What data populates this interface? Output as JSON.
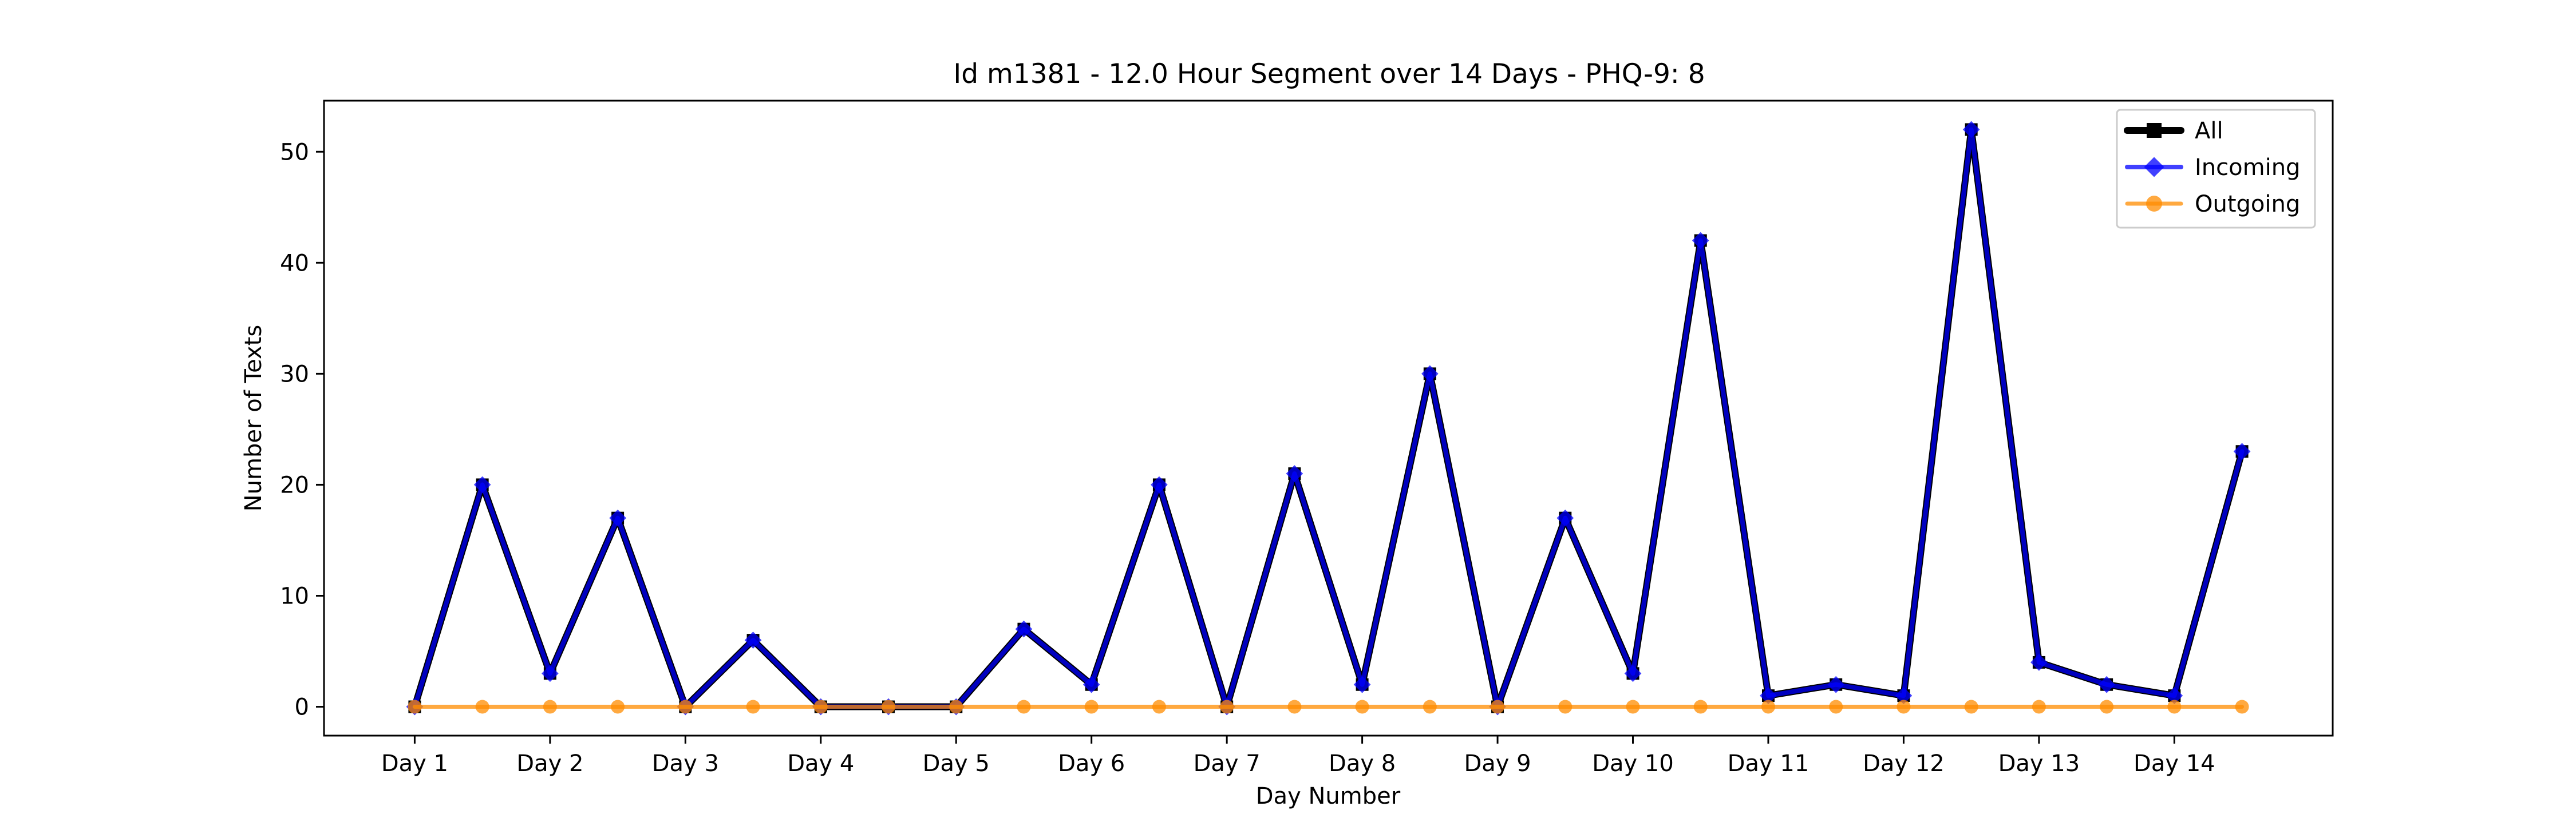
{
  "chart_data": {
    "type": "line",
    "title": "Id m1381 - 12.0 Hour Segment over 14 Days - PHQ-9: 8",
    "xlabel": "Day Number",
    "ylabel": "Number of Texts",
    "x": [
      1,
      1.5,
      2,
      2.5,
      3,
      3.5,
      4,
      4.5,
      5,
      5.5,
      6,
      6.5,
      7,
      7.5,
      8,
      8.5,
      9,
      9.5,
      10,
      10.5,
      11,
      11.5,
      12,
      12.5,
      13,
      13.5,
      14,
      14.5
    ],
    "xticks": [
      1,
      2,
      3,
      4,
      5,
      6,
      7,
      8,
      9,
      10,
      11,
      12,
      13,
      14
    ],
    "xtick_labels": [
      "Day 1",
      "Day 2",
      "Day 3",
      "Day 4",
      "Day 5",
      "Day 6",
      "Day 7",
      "Day 8",
      "Day 9",
      "Day 10",
      "Day 11",
      "Day 12",
      "Day 13",
      "Day 14"
    ],
    "yticks": [
      0,
      10,
      20,
      30,
      40,
      50
    ],
    "xlim": [
      0.33,
      15.17
    ],
    "ylim": [
      -2.6,
      54.6
    ],
    "grid": false,
    "legend_position": "top-right",
    "series": [
      {
        "name": "All",
        "color": "#000000",
        "marker": "square",
        "values": [
          0,
          20,
          3,
          17,
          0,
          6,
          0,
          0,
          0,
          7,
          2,
          20,
          0,
          21,
          2,
          30,
          0,
          17,
          3,
          42,
          1,
          2,
          1,
          52,
          4,
          2,
          1,
          23
        ]
      },
      {
        "name": "Incoming",
        "color": "#0000ff",
        "marker": "diamond",
        "values": [
          0,
          20,
          3,
          17,
          0,
          6,
          0,
          0,
          0,
          7,
          2,
          20,
          0,
          21,
          2,
          30,
          0,
          17,
          3,
          42,
          1,
          2,
          1,
          52,
          4,
          2,
          1,
          23
        ]
      },
      {
        "name": "Outgoing",
        "color": "#ff8c00",
        "marker": "circle",
        "values": [
          0,
          0,
          0,
          0,
          0,
          0,
          0,
          0,
          0,
          0,
          0,
          0,
          0,
          0,
          0,
          0,
          0,
          0,
          0,
          0,
          0,
          0,
          0,
          0,
          0,
          0,
          0,
          0
        ]
      }
    ]
  }
}
